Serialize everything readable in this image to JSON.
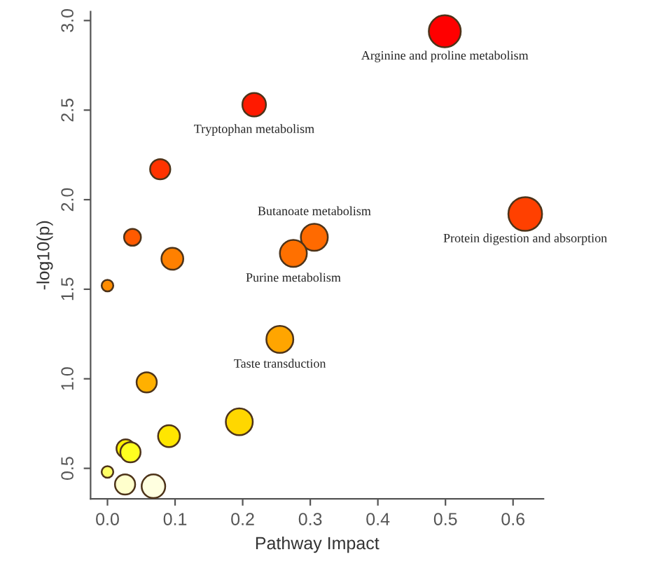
{
  "chart_data": {
    "type": "bubble",
    "xlabel": "Pathway Impact",
    "ylabel": "-log10(p)",
    "xlim": [
      -0.025,
      0.645
    ],
    "xticks": [
      {
        "value": 0,
        "label": "0.0"
      },
      0.1,
      0.2,
      0.3,
      0.4,
      0.5,
      0.6
    ],
    "ylim": [
      0.33,
      3.05
    ],
    "yticks": [
      0.5,
      {
        "value": 1,
        "label": "1.0"
      },
      1.5,
      {
        "value": 2,
        "label": "2.0"
      },
      2.5,
      {
        "value": 3,
        "label": "3.0"
      }
    ],
    "grid": false,
    "legend": false,
    "series": [
      {
        "x": [
          0.499,
          0.217,
          0.078,
          0.618,
          0.037,
          0.306,
          0.275,
          0.096,
          0,
          0.255,
          0.058,
          0.195,
          0.091,
          0.027,
          0.034,
          0,
          0.026,
          0.068
        ],
        "values": [
          2.94,
          2.53,
          2.17,
          1.92,
          1.79,
          1.79,
          1.7,
          1.67,
          1.52,
          1.22,
          0.98,
          0.76,
          0.68,
          0.61,
          0.59,
          0.48,
          0.41,
          0.4
        ],
        "sizes": [
          0.9,
          0.49,
          0.36,
          1,
          0.25,
          0.64,
          0.64,
          0.42,
          0.12,
          0.64,
          0.36,
          0.64,
          0.42,
          0.3,
          0.36,
          0.12,
          0.36,
          0.49
        ],
        "colors": [
          "#ff0000",
          "#ff1a00",
          "#ff3300",
          "#ff4000",
          "#ff5a00",
          "#ff6a00",
          "#ff7000",
          "#ff8000",
          "#ff8c00",
          "#ffa500",
          "#ffb000",
          "#ffd700",
          "#ffe600",
          "#fff000",
          "#ffff20",
          "#ffff66",
          "#ffffcc",
          "#ffffe0"
        ]
      }
    ],
    "annotations": [
      {
        "text": "Arginine and proline metabolism",
        "x": 0.499,
        "y": 2.94
      },
      {
        "text": "Tryptophan metabolism",
        "x": 0.217,
        "y": 2.53
      },
      {
        "text": "Butanoate metabolism",
        "x": 0.306,
        "y": 1.79
      },
      {
        "text": "Protein digestion and absorption",
        "x": 0.618,
        "y": 1.92
      },
      {
        "text": "Purine metabolism",
        "x": 0.275,
        "y": 1.7
      },
      {
        "text": "Taste transduction",
        "x": 0.255,
        "y": 1.22
      }
    ]
  }
}
